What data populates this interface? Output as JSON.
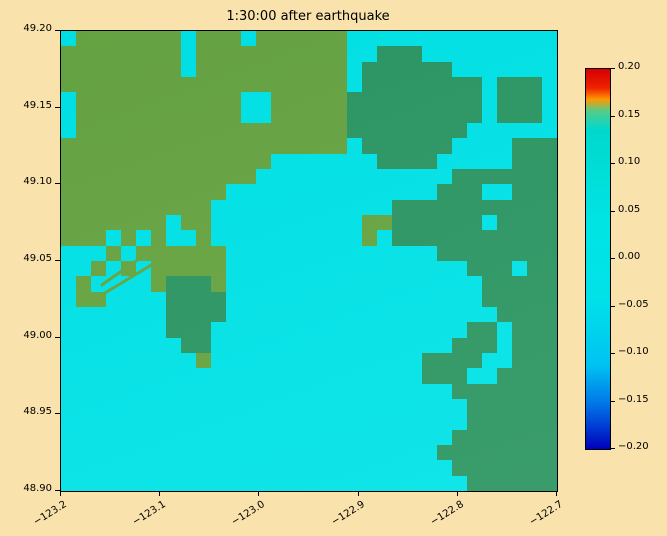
{
  "figure": {
    "background": "#f9e2ac",
    "plot_border_color": "#000000"
  },
  "chart_data": {
    "type": "heatmap",
    "title": "1:30:00 after earthquake",
    "xlabel": "",
    "ylabel": "",
    "x_tick_labels": [
      "−123.2",
      "−123.1",
      "−123.0",
      "−122.9",
      "−122.8",
      "−122.7"
    ],
    "y_tick_labels": [
      "49.20",
      "49.15",
      "49.10",
      "49.05",
      "49.00",
      "48.95",
      "48.90"
    ],
    "xlim": [
      -123.25,
      -122.7
    ],
    "ylim": [
      48.9,
      49.2
    ],
    "grid_on": false,
    "colorbar": {
      "vmin": -0.2,
      "vmax": 0.2,
      "tick_labels": [
        "0.20",
        "0.15",
        "0.10",
        "0.05",
        "0.00",
        "−0.05",
        "−0.10",
        "−0.15",
        "−0.20"
      ],
      "gradient_stops": [
        {
          "pos": 0.0,
          "color": "#d40000"
        },
        {
          "pos": 0.05,
          "color": "#ee2200"
        },
        {
          "pos": 0.08,
          "color": "#ff9900"
        },
        {
          "pos": 0.11,
          "color": "#55cc88"
        },
        {
          "pos": 0.16,
          "color": "#00d8cc"
        },
        {
          "pos": 0.4,
          "color": "#00e4e4"
        },
        {
          "pos": 0.6,
          "color": "#00e2e8"
        },
        {
          "pos": 0.78,
          "color": "#00c2f2"
        },
        {
          "pos": 0.88,
          "color": "#0077e8"
        },
        {
          "pos": 0.95,
          "color": "#0033d0"
        },
        {
          "pos": 1.0,
          "color": "#0000bb"
        }
      ]
    },
    "cell_kinds": {
      "w": "water",
      "g": "land-low",
      "d": "land-high"
    },
    "cell_colors": {
      "w": "#00e2e6",
      "g": "#6f9e33",
      "d": "#2f8f57"
    },
    "grid_size": {
      "cols": 33,
      "rows": 30
    },
    "grid_rows": [
      "wgggggggwgggwggggggwwwwwwwwwwwwww",
      "ggggggggwggggggggggwwdddwwwwwwwww",
      "ggggggggwggggggggggwddddddwwwwwww",
      "gggggggggggggggggggwddddddddwdddw",
      "wgggggggggggwwgggggdddddddddwdddw",
      "wgggggggggggwwgggggdddddddddwdddw",
      "wggggggggggggggggggddddddddwwwwww",
      "gggggggggggggggggggwddddddwwwwddd",
      "ggggggggggggggwwwwwwwddddwwwwwddd",
      "gggggggggggggwwwwwwwwwwwwwddddddd",
      "gggggggggggwwwwwwwwwwwwwwdddwwddd",
      "ggggggggggwwwwwwwwwwwwddddddddddd",
      "gggggggwggwwwwwwwwwwggddddddwdddd",
      "gggwgwgwwgwwwwwwwwwwgwddddddddddd",
      "wwwgwggggggwwwwwwwwwwwwwwdddddddd",
      "wwgwgwgggggwwwwwwwwwwwwwwwwdddwdd",
      "wgwwwwgdddgwwwwwwwwwwwwwwwwwddddd",
      "wggwwwwddddwwwwwwwwwwwwwwwwwddddd",
      "wwwwwwwddddwwwwwwwwwwwwwwwwwwdddd",
      "wwwwwwwdddwwwwwwwwwwwwwwwwwddwddd",
      "wwwwwwwwddwwwwwwwwwwwwwwwwdddwddd",
      "wwwwwwwwwgwwwwwwwwwwwwwwddddwwddd",
      "wwwwwwwwwwwwwwwwwwwwwwwwdddwwdddd",
      "wwwwwwwwwwwwwwwwwwwwwwwwwwddddddd",
      "wwwwwwwwwwwwwwwwwwwwwwwwwwwdddddd",
      "wwwwwwwwwwwwwwwwwwwwwwwwwwwdddddd",
      "wwwwwwwwwwwwwwwwwwwwwwwwwwddddddd",
      "wwwwwwwwwwwwwwwwwwwwwwwwwdddddddd",
      "wwwwwwwwwwwwwwwwwwwwwwwwwwddddddd",
      "wwwwwwwwwwwwwwwwwwwwwwwwwwwdddddd"
    ],
    "jetties": [
      {
        "x": 28,
        "y": 270,
        "length": 95,
        "angle": -31
      },
      {
        "x": 40,
        "y": 253,
        "length": 61,
        "angle": -35
      }
    ]
  }
}
